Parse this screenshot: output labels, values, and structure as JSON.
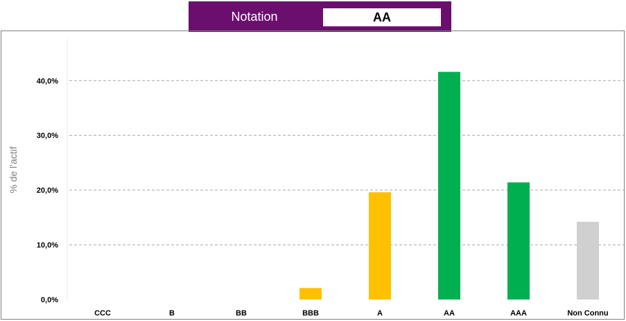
{
  "header": {
    "notation_label": "Notation",
    "notation_value": "AA"
  },
  "colors": {
    "banner": "#6b0f6e",
    "yellow": "#ffc000",
    "green": "#00b050",
    "grey": "#d0d0d0"
  },
  "chart_data": {
    "type": "bar",
    "categories": [
      "CCC",
      "B",
      "BB",
      "BBB",
      "A",
      "AA",
      "AAA",
      "Non Connu"
    ],
    "values": [
      0,
      0,
      0,
      2.1,
      19.6,
      41.6,
      21.4,
      14.2
    ],
    "bar_colors": [
      "#ffc000",
      "#ffc000",
      "#ffc000",
      "#ffc000",
      "#ffc000",
      "#00b050",
      "#00b050",
      "#d0d0d0"
    ],
    "ylabel": "% de l'actif",
    "ylim": [
      0,
      45
    ],
    "yticks": [
      0,
      10,
      20,
      30,
      40
    ],
    "ytick_labels": [
      "0,0%",
      "10,0%",
      "20,0%",
      "30,0%",
      "40,0%"
    ],
    "grid": true
  }
}
